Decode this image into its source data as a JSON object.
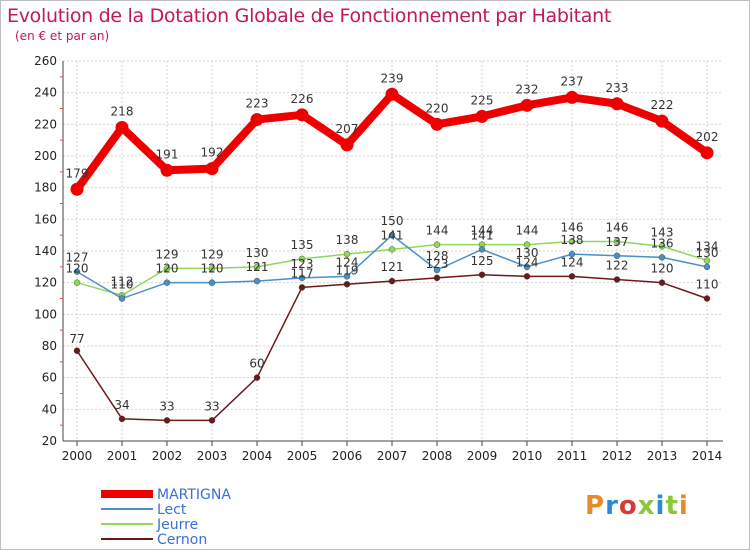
{
  "title": "Evolution de la Dotation Globale de Fonctionnement par Habitant",
  "subtitle": "(en € et par an)",
  "logo": "Proxiti",
  "chart_data": {
    "type": "line",
    "title": "Evolution de la Dotation Globale de Fonctionnement par Habitant",
    "subtitle": "(en € et par an)",
    "xlabel": "",
    "ylabel": "",
    "ylim": [
      20,
      260
    ],
    "yticks": [
      20,
      40,
      60,
      80,
      100,
      120,
      140,
      160,
      180,
      200,
      220,
      240,
      260
    ],
    "grid": true,
    "legend_position": "bottom-left",
    "x": [
      "2000",
      "2001",
      "2002",
      "2003",
      "2004",
      "2005",
      "2006",
      "2007",
      "2008",
      "2009",
      "2010",
      "2011",
      "2012",
      "2013",
      "2014"
    ],
    "series": [
      {
        "name": "MARTIGNA",
        "color": "#ee0000",
        "values": [
          179,
          218,
          191,
          192,
          223,
          226,
          207,
          239,
          220,
          225,
          232,
          237,
          233,
          222,
          202
        ]
      },
      {
        "name": "Lect",
        "color": "#4a90c8",
        "values": [
          127,
          110,
          120,
          120,
          121,
          123,
          124,
          150,
          128,
          141,
          130,
          138,
          137,
          136,
          130
        ]
      },
      {
        "name": "Jeurre",
        "color": "#8ed85a",
        "values": [
          120,
          112,
          129,
          129,
          130,
          135,
          138,
          141,
          144,
          144,
          144,
          146,
          146,
          143,
          134
        ]
      },
      {
        "name": "Cernon",
        "color": "#6b1a1a",
        "values": [
          77,
          34,
          33,
          33,
          60,
          117,
          119,
          121,
          123,
          125,
          124,
          124,
          122,
          120,
          110
        ]
      }
    ],
    "data_labels": [
      {
        "series": 0,
        "texts": [
          "179",
          "218",
          "191",
          "192",
          "223",
          "226",
          "207",
          "239",
          "220",
          "225",
          "232",
          "237",
          "233",
          "222",
          "202"
        ]
      },
      {
        "series": 1,
        "texts": [
          "127",
          "110",
          "120",
          "120",
          "121",
          "123",
          "124",
          "150",
          "128",
          "141",
          "130",
          "138",
          "137",
          "136",
          "130"
        ]
      },
      {
        "series": 2,
        "texts": [
          "120",
          "112",
          "129",
          "129",
          "130",
          "135",
          "138",
          "141",
          "144",
          "144",
          "144",
          "146",
          "146",
          "143",
          "134"
        ]
      },
      {
        "series": 3,
        "texts": [
          "77",
          "34",
          "33",
          "33",
          "60",
          "117",
          "119",
          "121",
          "123",
          "125",
          "124",
          "124",
          "122",
          "120",
          "110"
        ]
      }
    ]
  }
}
